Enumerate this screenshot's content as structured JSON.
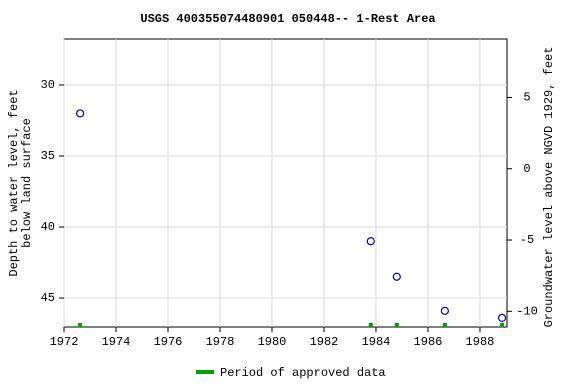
{
  "chart_data": {
    "type": "scatter",
    "title": "USGS 400355074480901 050448-- 1-Rest Area",
    "y_label": "Depth to water level, feet below land surface",
    "y2_label": "Groundwater level above NGVD 1929, feet",
    "x": [
      1972.62,
      1983.8,
      1984.8,
      1986.65,
      1988.85
    ],
    "series": [
      {
        "name": "Depth to water level",
        "color": "#0000c0",
        "values": [
          32.0,
          41.0,
          43.5,
          45.9,
          46.4
        ]
      }
    ],
    "approved": {
      "name": "Period of approved data",
      "color": "#00a000"
    },
    "xlim": [
      1972,
      1989.04
    ],
    "xticks": [
      1972,
      1974,
      1976,
      1978,
      1980,
      1982,
      1984,
      1986,
      1988
    ],
    "ylim": [
      26.76,
      47.04
    ],
    "yticks": [
      30,
      35,
      40,
      45
    ],
    "inverted": true,
    "y2lim": [
      9.1,
      -11.1
    ],
    "y2ticks": [
      5,
      0,
      -5,
      -10
    ],
    "grid": true
  }
}
